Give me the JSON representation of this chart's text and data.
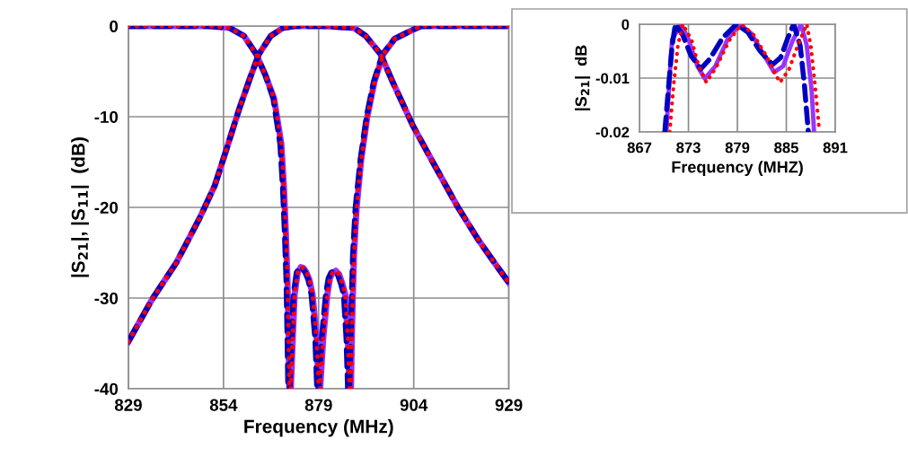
{
  "chart_data": [
    {
      "type": "line",
      "xlabel": "Frequency (MHz)",
      "ylabel": "|S$_{21}$|, |S$_{11}$|  (dB)",
      "xlim": [
        829,
        929
      ],
      "ylim": [
        -40,
        0
      ],
      "xticks": [
        829,
        854,
        879,
        904,
        929
      ],
      "yticks": [
        -40,
        -30,
        -20,
        -10,
        0
      ],
      "grid": true,
      "series": [
        {
          "color": "#9933ff",
          "line_style": "solid",
          "x": [
            829,
            835.3,
            841.6,
            847.7,
            851.7,
            854.7,
            858,
            861,
            863.3,
            866.4,
            869.6,
            872.7,
            880,
            888.3,
            891.4,
            895.3,
            898.4,
            903.8,
            909.4,
            915.5,
            921,
            926.4,
            929
          ],
          "values": [
            -34.8,
            -30.1,
            -26.1,
            -21.2,
            -17.6,
            -13.7,
            -9.3,
            -5.7,
            -3.1,
            -1.1,
            -0.2,
            0,
            0,
            -0.2,
            -1.1,
            -3.1,
            -6.1,
            -11,
            -15.3,
            -19.9,
            -23.6,
            -26.8,
            -28.3
          ]
        },
        {
          "color": "#9933ff",
          "line_style": "solid",
          "x": [
            829,
            850,
            855.6,
            859.4,
            862.6,
            865,
            867.3,
            869.2,
            869.9,
            870.4,
            870.8,
            871.1,
            871.3,
            871.5,
            871.7,
            872.2,
            872.7,
            873.5,
            874.3,
            875.0,
            875.7,
            876.6,
            877.4,
            878.5,
            879.0,
            879.2,
            879.4,
            880.2,
            881.3,
            882.0,
            882.7,
            883.5,
            884.4,
            885.3,
            886.0,
            886.7,
            887.1,
            887.3,
            887.5,
            887.8,
            888.3,
            889,
            890.2,
            891.8,
            893.7,
            896,
            899,
            903.8,
            906,
            929
          ],
          "values": [
            0,
            0,
            -0.2,
            -1.1,
            -3.1,
            -5.4,
            -8.0,
            -13,
            -17.9,
            -22.9,
            -27.8,
            -34.5,
            -40,
            null,
            -40,
            -34.5,
            -29.6,
            -27.2,
            -26.6,
            -26.7,
            -27.1,
            -28,
            -29.6,
            -34.5,
            -40,
            null,
            -40,
            -34.5,
            -29.6,
            -27.8,
            -27.2,
            -27.0,
            -27.4,
            -28.5,
            -29.6,
            -34.5,
            -40,
            null,
            -40,
            -32.9,
            -25.3,
            -20,
            -14.7,
            -10,
            -6.1,
            -3.1,
            -1.4,
            -0.4,
            0,
            0
          ]
        },
        {
          "color": "#0000c0",
          "line_style": "dashed",
          "x": [
            829,
            835.3,
            841.6,
            847.7,
            851.7,
            854.7,
            858,
            861,
            863.3,
            866.4,
            869.6,
            872.7,
            880,
            888.3,
            891.4,
            895.3,
            898.4,
            903.8,
            909.4,
            915.5,
            921,
            926.4,
            929
          ],
          "values": [
            -34.8,
            -30.1,
            -26.1,
            -21.2,
            -17.6,
            -13.7,
            -9.3,
            -5.7,
            -3.1,
            -1.1,
            -0.2,
            0,
            0,
            -0.2,
            -1.1,
            -3.1,
            -6.1,
            -11,
            -15.3,
            -19.9,
            -23.6,
            -26.8,
            -28.3
          ]
        },
        {
          "color": "#0000c0",
          "line_style": "dashed",
          "x": [
            829,
            850,
            855.6,
            859.4,
            862.6,
            865,
            867.1,
            868.9,
            869.6,
            870.1,
            870.5,
            870.8,
            871.0,
            871.2,
            871.4,
            871.9,
            872.4,
            873.2,
            874.0,
            874.7,
            875.4,
            876.3,
            877.1,
            878.1,
            878.6,
            878.8,
            879.0,
            879.8,
            880.9,
            881.6,
            882.3,
            883.1,
            884.0,
            884.9,
            885.6,
            886.3,
            886.7,
            886.9,
            887.1,
            887.5,
            888.0,
            888.7,
            890.0,
            891.6,
            893.5,
            895.8,
            899,
            903.8,
            906,
            929
          ],
          "values": [
            0,
            0,
            -0.2,
            -1.1,
            -3.1,
            -5.4,
            -8.0,
            -13,
            -17.9,
            -22.9,
            -27.8,
            -34.5,
            -40,
            null,
            -40,
            -34.5,
            -29.6,
            -27.2,
            -26.6,
            -26.7,
            -27.1,
            -28,
            -29.6,
            -34.5,
            -40,
            null,
            -40,
            -34.5,
            -29.6,
            -27.8,
            -27.2,
            -27.0,
            -27.4,
            -28.5,
            -29.6,
            -34.5,
            -40,
            null,
            -40,
            -32.9,
            -25.3,
            -20,
            -14.7,
            -10,
            -6.1,
            -3.1,
            -1.4,
            -0.4,
            0,
            0
          ]
        },
        {
          "color": "#ff0000",
          "line_style": "dotted",
          "x": [
            829,
            835.3,
            841.6,
            847.7,
            851.7,
            854.7,
            858,
            861,
            863.3,
            866.4,
            869.6,
            872.7,
            880,
            888.3,
            891.4,
            895.3,
            898.4,
            903.8,
            909.4,
            915.5,
            921,
            926.4,
            929
          ],
          "values": [
            -34.8,
            -30.1,
            -26.1,
            -21.2,
            -17.6,
            -13.7,
            -9.3,
            -5.7,
            -3.1,
            -1.1,
            -0.2,
            0,
            0,
            -0.2,
            -1.1,
            -3.1,
            -6.1,
            -11,
            -15.3,
            -19.9,
            -23.6,
            -26.8,
            -28.3
          ]
        },
        {
          "color": "#ff0000",
          "line_style": "dotted",
          "x": [
            829,
            850,
            855.6,
            859.4,
            862.6,
            865,
            867.3,
            869.2,
            869.9,
            870.4,
            870.8,
            871.1,
            871.3,
            871.5,
            871.7,
            872.2,
            872.7,
            873.5,
            874.3,
            875.0,
            875.7,
            876.6,
            877.4,
            878.5,
            879.0,
            879.2,
            879.4,
            880.2,
            881.3,
            882.0,
            882.7,
            883.5,
            884.4,
            885.3,
            886.0,
            886.7,
            887.1,
            887.3,
            887.5,
            887.8,
            888.3,
            889,
            890.2,
            891.8,
            893.7,
            896,
            899,
            903.8,
            906,
            929
          ],
          "values": [
            0,
            0,
            -0.2,
            -1.1,
            -3.1,
            -5.4,
            -8.0,
            -13,
            -17.9,
            -22.9,
            -27.8,
            -34.5,
            -40,
            null,
            -40,
            -34.5,
            -29.6,
            -27.2,
            -26.6,
            -26.7,
            -27.1,
            -28,
            -29.6,
            -34.5,
            -40,
            null,
            -40,
            -34.5,
            -29.6,
            -27.8,
            -27.2,
            -27.0,
            -27.4,
            -28.5,
            -29.6,
            -34.5,
            -40,
            null,
            -40,
            -32.9,
            -25.3,
            -20,
            -14.7,
            -10,
            -6.1,
            -3.1,
            -1.4,
            -0.4,
            0,
            0
          ]
        }
      ]
    },
    {
      "type": "line",
      "xlabel": "Frequency (MHZ)",
      "ylabel": "|S$_{21}$|  dB",
      "xlim": [
        867,
        891
      ],
      "ylim": [
        -0.02,
        0
      ],
      "xticks": [
        867,
        873,
        879,
        885,
        891
      ],
      "yticks": [
        -0.02,
        -0.01,
        0
      ],
      "grid": true,
      "series": [
        {
          "color": "#0000c0",
          "line_style": "dashed",
          "x": [
            870.1,
            870.6,
            871.0,
            871.4,
            872.3,
            873.3,
            874.5,
            875.6,
            877.2,
            878.9,
            880.3,
            881.8,
            883.3,
            884.3,
            885.2,
            885.9,
            886.7,
            887.2,
            887.7
          ],
          "values": [
            -0.02,
            -0.011,
            -0.004,
            0,
            -0.002,
            -0.0058,
            -0.0083,
            -0.0065,
            -0.0025,
            0,
            -0.0015,
            -0.005,
            -0.0075,
            -0.0062,
            -0.0025,
            0,
            -0.004,
            -0.011,
            -0.02
          ]
        },
        {
          "color": "#ff0000",
          "line_style": "dotted",
          "x": [
            870.7,
            871.2,
            871.7,
            872.3,
            873.4,
            874.2,
            875.2,
            876.4,
            878.0,
            879.5,
            881.0,
            882.6,
            884.2,
            885.3,
            886.4,
            887.5,
            888.0,
            888.5,
            889.0
          ],
          "values": [
            -0.02,
            -0.011,
            -0.004,
            0,
            -0.003,
            -0.0075,
            -0.0108,
            -0.008,
            -0.003,
            0,
            -0.002,
            -0.006,
            -0.0108,
            -0.0085,
            -0.004,
            0,
            -0.004,
            -0.011,
            -0.019
          ]
        },
        {
          "color": "#9933ff",
          "line_style": "solid",
          "x": [
            870.3,
            870.7,
            871.0,
            872.1,
            873.0,
            874.1,
            875.0,
            876.3,
            877.8,
            879.3,
            880.7,
            882.2,
            883.5,
            884.6,
            885.7,
            886.8,
            887.5,
            888.1,
            888.4
          ],
          "values": [
            -0.02,
            -0.0094,
            -0.0028,
            0,
            -0.0028,
            -0.0078,
            -0.0101,
            -0.0078,
            -0.0028,
            0,
            -0.0017,
            -0.0056,
            -0.0089,
            -0.0078,
            -0.0033,
            0,
            -0.0039,
            -0.0122,
            -0.02
          ]
        }
      ]
    }
  ]
}
